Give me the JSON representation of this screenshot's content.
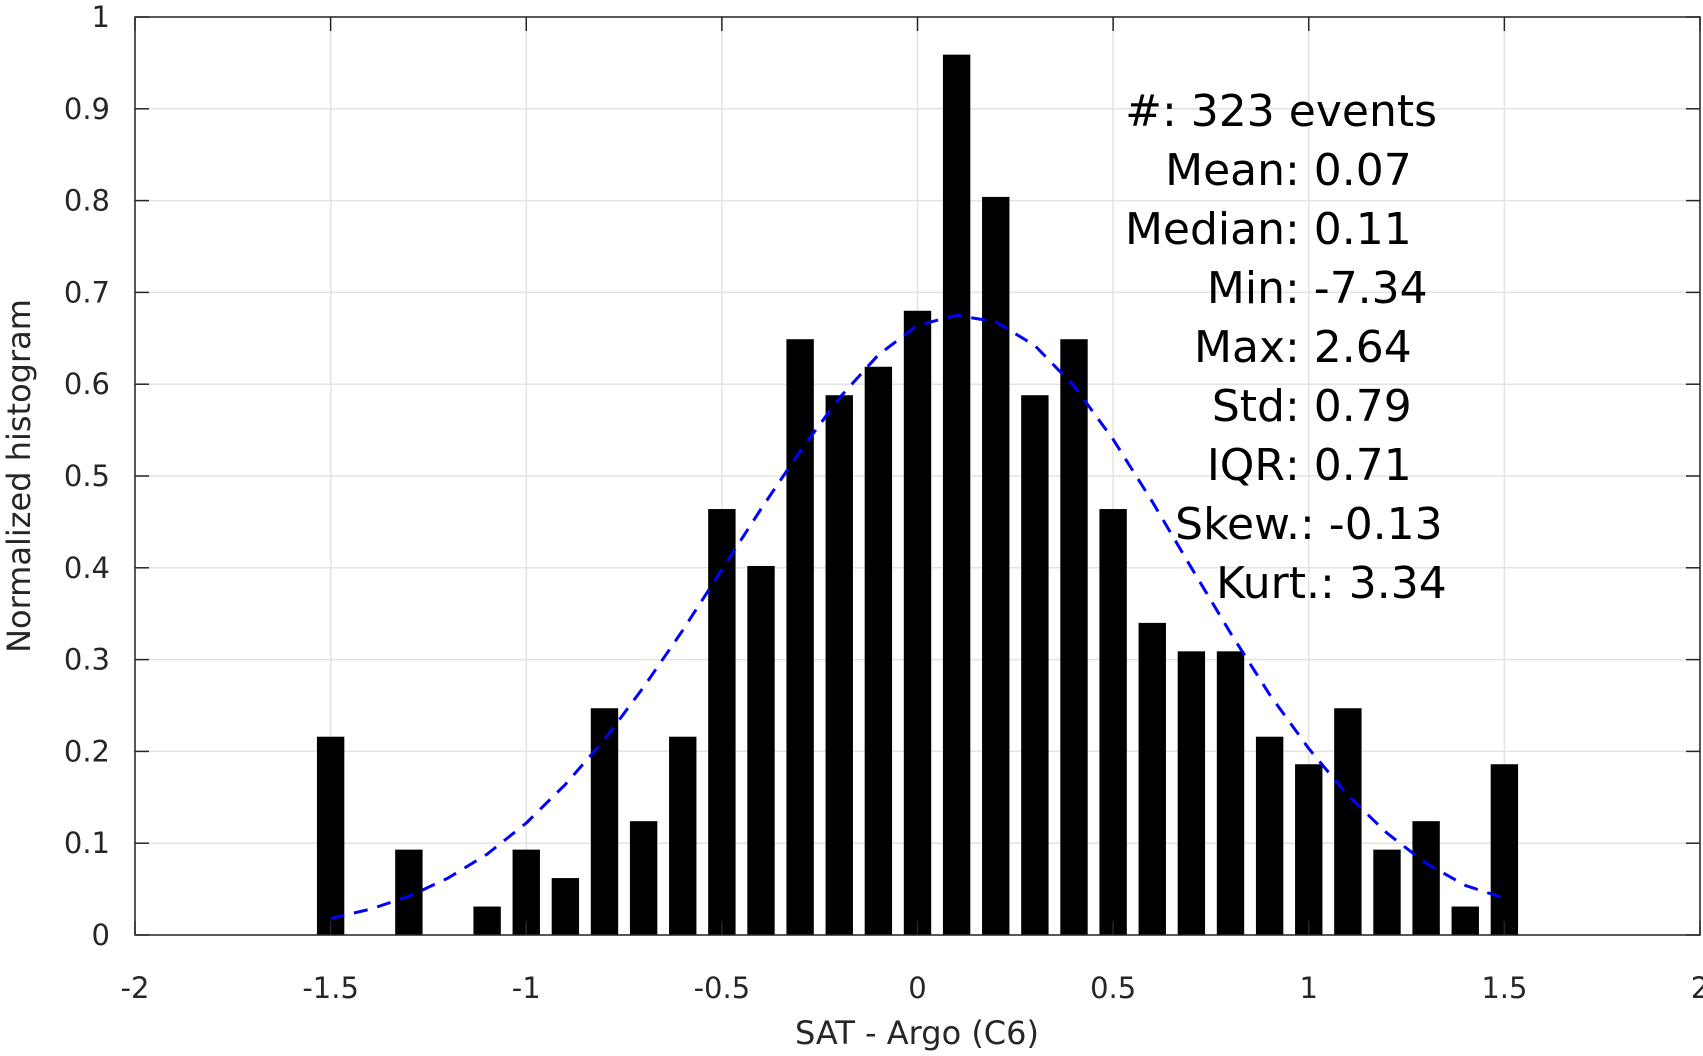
{
  "chart_data": {
    "type": "bar",
    "title": "",
    "xlabel": "SAT - Argo (C6)",
    "ylabel": "Normalized histogram",
    "xlim": [
      -2,
      2
    ],
    "ylim": [
      0,
      1
    ],
    "grid": true,
    "x_ticks": [
      -2,
      -1.5,
      -1,
      -0.5,
      0,
      0.5,
      1,
      1.5,
      2
    ],
    "x_tick_labels": [
      "-2",
      "-1.5",
      "-1",
      "-0.5",
      "0",
      "0.5",
      "1",
      "1.5",
      "2"
    ],
    "y_ticks": [
      0,
      0.1,
      0.2,
      0.3,
      0.4,
      0.5,
      0.6,
      0.7,
      0.8,
      0.9,
      1
    ],
    "y_tick_labels": [
      "0",
      "0.1",
      "0.2",
      "0.3",
      "0.4",
      "0.5",
      "0.6",
      "0.7",
      "0.8",
      "0.9",
      "1"
    ],
    "bar_width": 0.07,
    "bars": {
      "color": "#000000",
      "x": [
        -1.5,
        -1.3,
        -1.1,
        -1.0,
        -0.9,
        -0.8,
        -0.7,
        -0.6,
        -0.5,
        -0.4,
        -0.3,
        -0.2,
        -0.1,
        0.0,
        0.1,
        0.2,
        0.3,
        0.4,
        0.5,
        0.6,
        0.7,
        0.8,
        0.9,
        1.0,
        1.1,
        1.2,
        1.3,
        1.4,
        1.5
      ],
      "values": [
        0.216,
        0.093,
        0.031,
        0.093,
        0.062,
        0.247,
        0.124,
        0.216,
        0.464,
        0.402,
        0.649,
        0.588,
        0.619,
        0.68,
        0.959,
        0.804,
        0.588,
        0.649,
        0.464,
        0.34,
        0.309,
        0.309,
        0.216,
        0.186,
        0.247,
        0.093,
        0.124,
        0.031,
        0.186
      ]
    },
    "fit_curve": {
      "style": "dashed",
      "color": "#0000ff",
      "x": [
        -1.5,
        -1.4,
        -1.3,
        -1.2,
        -1.1,
        -1.0,
        -0.9,
        -0.8,
        -0.7,
        -0.6,
        -0.5,
        -0.4,
        -0.3,
        -0.2,
        -0.1,
        0.0,
        0.1,
        0.2,
        0.3,
        0.4,
        0.5,
        0.6,
        0.7,
        0.8,
        0.9,
        1.0,
        1.1,
        1.2,
        1.3,
        1.4,
        1.5
      ],
      "values": [
        0.018,
        0.028,
        0.042,
        0.062,
        0.088,
        0.122,
        0.164,
        0.213,
        0.27,
        0.332,
        0.398,
        0.464,
        0.527,
        0.585,
        0.632,
        0.664,
        0.675,
        0.668,
        0.642,
        0.598,
        0.54,
        0.472,
        0.4,
        0.329,
        0.262,
        0.203,
        0.152,
        0.111,
        0.078,
        0.054,
        0.04
      ]
    },
    "stats": [
      {
        "label": "#  ",
        "sep": ": ",
        "value": "323 events"
      },
      {
        "label": "Mean ",
        "sep": ": ",
        "value": "0.07"
      },
      {
        "label": "Median ",
        "sep": ": ",
        "value": "0.11"
      },
      {
        "label": "Min ",
        "sep": ": ",
        "value": "-7.34"
      },
      {
        "label": "Max ",
        "sep": ": ",
        "value": "2.64"
      },
      {
        "label": "Std ",
        "sep": ": ",
        "value": "0.79"
      },
      {
        "label": "IQR ",
        "sep": ": ",
        "value": "0.71"
      },
      {
        "label": "Skew. ",
        "sep": ": ",
        "value": "-0.13"
      },
      {
        "label": "Kurt. ",
        "sep": ": ",
        "value": "3.34"
      }
    ]
  }
}
